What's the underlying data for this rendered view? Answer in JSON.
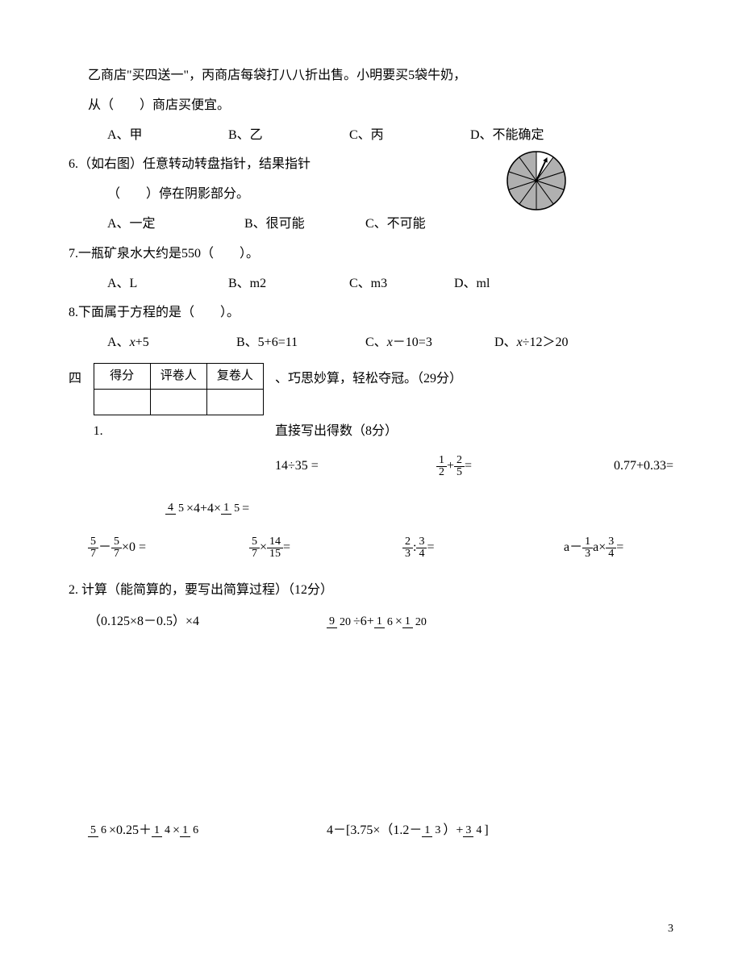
{
  "q5": {
    "line1": "乙商店\"买四送一\"，丙商店每袋打八八折出售。小明要买5袋牛奶，",
    "line2": "从（　　）商店买便宜。",
    "optA": "A、甲",
    "optB": "B、乙",
    "optC": "C、丙",
    "optD": "D、不能确定"
  },
  "q6": {
    "line1": "6.（如右图）任意转动转盘指针，结果指针",
    "line2": "（　　）停在阴影部分。",
    "optA": "A、一定",
    "optB": "B、很可能",
    "optC": "C、不可能",
    "spinner": {
      "radius": 36,
      "sectors": 10,
      "shaded_color": "#b0b0b0",
      "unshaded_color": "#ffffff",
      "stroke": "#000000",
      "unshaded_index": 0,
      "pointer_angle": -65
    }
  },
  "q7": {
    "text": "7.一瓶矿泉水大约是550（　　）。",
    "optA": "A、L",
    "optB": "B、m2",
    "optC": "C、m3",
    "optD": "D、ml"
  },
  "q8": {
    "text": "8.下面属于方程的是（　　）。",
    "optA_pre": "A、",
    "optA_var": "x",
    "optA_post": "+5",
    "optB": "B、5+6=11",
    "optC_pre": "C、",
    "optC_var": "x",
    "optC_post": "－10=3",
    "optD_pre": "D、",
    "optD_var": "x",
    "optD_post": "÷12＞20"
  },
  "section4": {
    "label": "四",
    "table": {
      "h1": "得分",
      "h2": "评卷人",
      "h3": "复卷人"
    },
    "title_right": "、巧思妙算，轻松夺冠。（29分）",
    "sub1_label": "1.",
    "sub1_text": "直接写出得数（8分）"
  },
  "row1": {
    "p1": "14÷35 =",
    "p2_lhs_n1": "1",
    "p2_lhs_d1": "2",
    "p2_plus": "+",
    "p2_lhs_n2": "2",
    "p2_lhs_d2": "5",
    "p2_eq": "=",
    "p3": "0.77+0.33="
  },
  "row2": {
    "n1": "4",
    "d1": "5",
    "mid": "×4+4×",
    "n2": "1",
    "d2": "5",
    "eq": "="
  },
  "row3": {
    "p1_n1": "5",
    "p1_d1": "7",
    "p1_minus": "－",
    "p1_n2": "5",
    "p1_d2": "7",
    "p1_post": "×0 =",
    "p2_n1": "5",
    "p2_d1": "7",
    "p2_times": "×",
    "p2_n2": "14",
    "p2_d2": "15",
    "p2_eq": "=",
    "p3_n1": "2",
    "p3_d1": "3",
    "p3_colon": ":",
    "p3_n2": "3",
    "p3_d2": "4",
    "p3_eq": "=",
    "p4_pre": "a－",
    "p4_n1": "1",
    "p4_d1": "3",
    "p4_mid": "a×",
    "p4_n2": "3",
    "p4_d2": "4",
    "p4_eq": "="
  },
  "sub2": {
    "label": "2. 计算（能简算的，要写出简算过程）（12分）"
  },
  "calc1": {
    "p1": "（0.125×8－0.5）×4",
    "p2_n1": "9",
    "p2_d1": "20",
    "p2_mid1": "÷6+",
    "p2_n2": "1",
    "p2_d2": "6",
    "p2_mid2": "×",
    "p2_n3": "1",
    "p2_d3": "20"
  },
  "calc2": {
    "p1_n1": "5",
    "p1_d1": "6",
    "p1_mid1": "×0.25＋",
    "p1_n2": "1",
    "p1_d2": "4",
    "p1_mid2": "×",
    "p1_n3": "1",
    "p1_d3": "6",
    "p2_pre": "4－[3.75×（1.2－",
    "p2_n1": "1",
    "p2_d1": "3",
    "p2_mid": "）+",
    "p2_n2": "3",
    "p2_d2": "4",
    "p2_post": "]"
  },
  "page_number": "3"
}
